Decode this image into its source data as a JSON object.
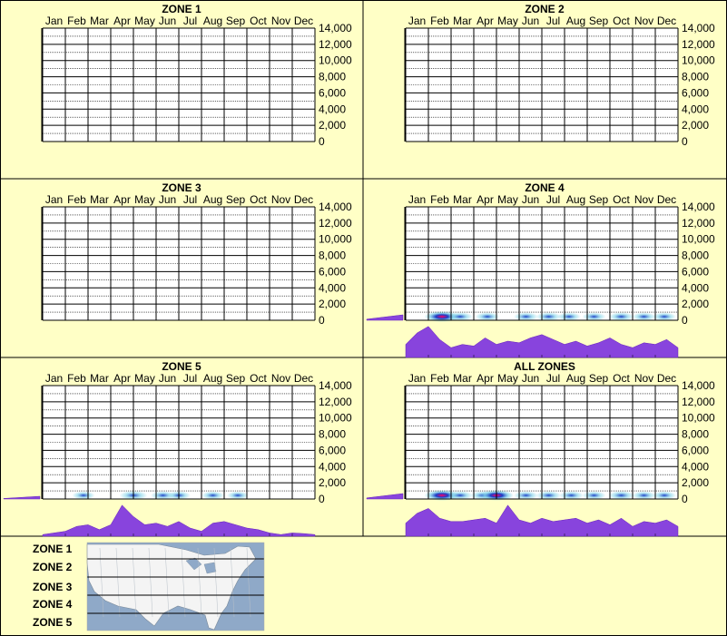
{
  "colors": {
    "background": "#ffffc6",
    "grid": "#000000",
    "axis": "#000000",
    "density_fill": "#8844dd",
    "density_stroke": "#6622bb",
    "heat_low": "#7fd3e8",
    "heat_mid": "#1a3fc8",
    "heat_high": "#ff0066",
    "map_water": "#8fa9c8",
    "map_land": "#f4f4f4"
  },
  "chart_data": [
    {
      "type": "heatmap",
      "title": "ZONE 1",
      "categories": [
        "Jan",
        "Feb",
        "Mar",
        "Apr",
        "May",
        "Jun",
        "Jul",
        "Aug",
        "Sep",
        "Oct",
        "Nov",
        "Dec"
      ],
      "y_tick_labels": [
        "14,000",
        "12,000",
        "10,000",
        "8,000",
        "6,000",
        "4,000",
        "2,000",
        "0"
      ],
      "ylim": [
        0,
        14000
      ],
      "grid": true,
      "month_density": [],
      "elevation_density": [],
      "hotspots": []
    },
    {
      "type": "heatmap",
      "title": "ZONE 2",
      "categories": [
        "Jan",
        "Feb",
        "Mar",
        "Apr",
        "May",
        "Jun",
        "Jul",
        "Aug",
        "Sep",
        "Oct",
        "Nov",
        "Dec"
      ],
      "y_tick_labels": [
        "14,000",
        "12,000",
        "10,000",
        "8,000",
        "6,000",
        "4,000",
        "2,000",
        "0"
      ],
      "ylim": [
        0,
        14000
      ],
      "grid": true,
      "month_density": [],
      "elevation_density": [],
      "hotspots": []
    },
    {
      "type": "heatmap",
      "title": "ZONE 3",
      "categories": [
        "Jan",
        "Feb",
        "Mar",
        "Apr",
        "May",
        "Jun",
        "Jul",
        "Aug",
        "Sep",
        "Oct",
        "Nov",
        "Dec"
      ],
      "y_tick_labels": [
        "14,000",
        "12,000",
        "10,000",
        "8,000",
        "6,000",
        "4,000",
        "2,000",
        "0"
      ],
      "ylim": [
        0,
        14000
      ],
      "grid": true,
      "month_density": [],
      "elevation_density": [],
      "hotspots": []
    },
    {
      "type": "heatmap",
      "title": "ZONE 4",
      "categories": [
        "Jan",
        "Feb",
        "Mar",
        "Apr",
        "May",
        "Jun",
        "Jul",
        "Aug",
        "Sep",
        "Oct",
        "Nov",
        "Dec"
      ],
      "y_tick_labels": [
        "14,000",
        "12,000",
        "10,000",
        "8,000",
        "6,000",
        "4,000",
        "2,000",
        "0"
      ],
      "ylim": [
        0,
        14000
      ],
      "grid": true,
      "month_density": [
        0.4,
        0.75,
        0.95,
        0.55,
        0.3,
        0.4,
        0.35,
        0.6,
        0.4,
        0.5,
        0.45,
        0.6,
        0.7,
        0.55,
        0.4,
        0.5,
        0.35,
        0.45,
        0.6,
        0.4,
        0.3,
        0.45,
        0.4,
        0.55,
        0.3
      ],
      "elevation_density": [
        0.2,
        0.5
      ],
      "hotspots": [
        {
          "month": 1.6,
          "intensity": 0.95
        },
        {
          "month": 2.4,
          "intensity": 0.4
        },
        {
          "month": 3.6,
          "intensity": 0.35
        },
        {
          "month": 5.3,
          "intensity": 0.35
        },
        {
          "month": 6.3,
          "intensity": 0.4
        },
        {
          "month": 7.2,
          "intensity": 0.3
        },
        {
          "month": 8.3,
          "intensity": 0.3
        },
        {
          "month": 9.5,
          "intensity": 0.4
        },
        {
          "month": 10.5,
          "intensity": 0.3
        },
        {
          "month": 11.4,
          "intensity": 0.3
        }
      ]
    },
    {
      "type": "heatmap",
      "title": "ZONE 5",
      "categories": [
        "Jan",
        "Feb",
        "Mar",
        "Apr",
        "May",
        "Jun",
        "Jul",
        "Aug",
        "Sep",
        "Oct",
        "Nov",
        "Dec"
      ],
      "y_tick_labels": [
        "14,000",
        "12,000",
        "10,000",
        "8,000",
        "6,000",
        "4,000",
        "2,000",
        "0"
      ],
      "ylim": [
        0,
        14000
      ],
      "grid": true,
      "month_density": [
        0.05,
        0.1,
        0.15,
        0.3,
        0.35,
        0.2,
        0.35,
        0.95,
        0.6,
        0.35,
        0.4,
        0.3,
        0.45,
        0.25,
        0.15,
        0.4,
        0.45,
        0.35,
        0.25,
        0.2,
        0.1,
        0.05,
        0.1,
        0.08,
        0.05
      ],
      "elevation_density": [
        0.1,
        0.25
      ],
      "hotspots": [
        {
          "month": 1.8,
          "intensity": 0.25
        },
        {
          "month": 4.0,
          "intensity": 0.55
        },
        {
          "month": 5.3,
          "intensity": 0.35
        },
        {
          "month": 6.0,
          "intensity": 0.3
        },
        {
          "month": 7.5,
          "intensity": 0.25
        },
        {
          "month": 8.6,
          "intensity": 0.2
        }
      ]
    },
    {
      "type": "heatmap",
      "title": "ALL ZONES",
      "categories": [
        "Jan",
        "Feb",
        "Mar",
        "Apr",
        "May",
        "Jun",
        "Jul",
        "Aug",
        "Sep",
        "Oct",
        "Nov",
        "Dec"
      ],
      "y_tick_labels": [
        "14,000",
        "12,000",
        "10,000",
        "8,000",
        "6,000",
        "4,000",
        "2,000",
        "0"
      ],
      "ylim": [
        0,
        14000
      ],
      "grid": true,
      "month_density": [
        0.4,
        0.7,
        0.85,
        0.55,
        0.45,
        0.45,
        0.5,
        0.55,
        0.4,
        0.95,
        0.5,
        0.4,
        0.55,
        0.45,
        0.5,
        0.55,
        0.4,
        0.5,
        0.35,
        0.55,
        0.3,
        0.45,
        0.4,
        0.5,
        0.3
      ],
      "elevation_density": [
        0.2,
        0.5
      ],
      "hotspots": [
        {
          "month": 1.6,
          "intensity": 0.95
        },
        {
          "month": 2.4,
          "intensity": 0.4
        },
        {
          "month": 3.4,
          "intensity": 0.35
        },
        {
          "month": 4.0,
          "intensity": 0.9
        },
        {
          "month": 5.3,
          "intensity": 0.35
        },
        {
          "month": 6.3,
          "intensity": 0.4
        },
        {
          "month": 7.3,
          "intensity": 0.35
        },
        {
          "month": 8.3,
          "intensity": 0.3
        },
        {
          "month": 9.5,
          "intensity": 0.45
        },
        {
          "month": 10.5,
          "intensity": 0.3
        },
        {
          "month": 11.4,
          "intensity": 0.3
        }
      ]
    }
  ],
  "legend": {
    "zones": [
      "ZONE 1",
      "ZONE 2",
      "ZONE 3",
      "ZONE 4",
      "ZONE 5"
    ],
    "map_icon": "us-map-icon"
  }
}
